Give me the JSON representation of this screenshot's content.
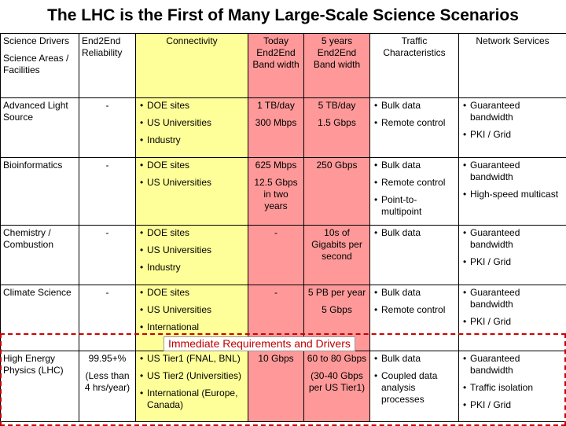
{
  "title": "The LHC is the First of Many Large-Scale Science Scenarios",
  "headers": {
    "drivers": "Science Drivers",
    "areas": "Science Areas / Facilities",
    "reliability": "End2End Reliability",
    "connectivity": "Connectivity",
    "today_bw": "Today End2End Band width",
    "five_year_bw": "5 years End2End Band width",
    "traffic": "Traffic Characteristics",
    "services": "Network Services"
  },
  "rows": [
    {
      "area": "Advanced Light Source",
      "reliability": "-",
      "connectivity": [
        "DOE sites",
        "US Universities",
        "Industry"
      ],
      "today": [
        "1 TB/day",
        "300 Mbps"
      ],
      "five": [
        "5 TB/day",
        "1.5 Gbps"
      ],
      "traffic": [
        "Bulk data",
        "Remote control"
      ],
      "services": [
        "Guaranteed bandwidth",
        "PKI / Grid"
      ]
    },
    {
      "area": "Bioinformatics",
      "reliability": "-",
      "connectivity": [
        "DOE sites",
        "US Universities"
      ],
      "today": [
        "625 Mbps",
        "12.5 Gbps in two years"
      ],
      "five": [
        "250 Gbps"
      ],
      "traffic": [
        "Bulk data",
        "Remote control",
        "Point-to-multipoint"
      ],
      "services": [
        "Guaranteed bandwidth",
        "High-speed multicast"
      ]
    },
    {
      "area": "Chemistry / Combustion",
      "reliability": "-",
      "connectivity": [
        "DOE sites",
        "US Universities",
        "Industry"
      ],
      "today": [
        "-"
      ],
      "five": [
        "10s of Gigabits per second"
      ],
      "traffic": [
        "Bulk data"
      ],
      "services": [
        "Guaranteed bandwidth",
        "PKI / Grid"
      ]
    },
    {
      "area": "Climate Science",
      "reliability": "-",
      "connectivity": [
        "DOE sites",
        "US Universities",
        "International"
      ],
      "today": [
        "-"
      ],
      "five": [
        "5 PB per year",
        "5 Gbps"
      ],
      "traffic": [
        "Bulk data",
        "Remote control"
      ],
      "services": [
        "Guaranteed bandwidth",
        "PKI / Grid"
      ]
    },
    {
      "area": "High Energy Physics (LHC)",
      "reliability": [
        "99.95+%",
        "(Less than 4 hrs/year)"
      ],
      "connectivity": [
        "US Tier1 (FNAL, BNL)",
        "US Tier2 (Universities)",
        "International (Europe, Canada)"
      ],
      "today": [
        "10 Gbps"
      ],
      "five": [
        "60 to 80 Gbps",
        "(30-40 Gbps per US Tier1)"
      ],
      "traffic": [
        "Bulk data",
        "Coupled data analysis processes"
      ],
      "services": [
        "Guaranteed bandwidth",
        "Traffic isolation",
        "PKI / Grid"
      ]
    }
  ],
  "banner": "Immediate Requirements and Drivers",
  "colors": {
    "connectivity_bg": "#ffff99",
    "bandwidth_bg": "#ff9999",
    "banner_text": "#c00000",
    "dash_border": "#cc0000"
  }
}
